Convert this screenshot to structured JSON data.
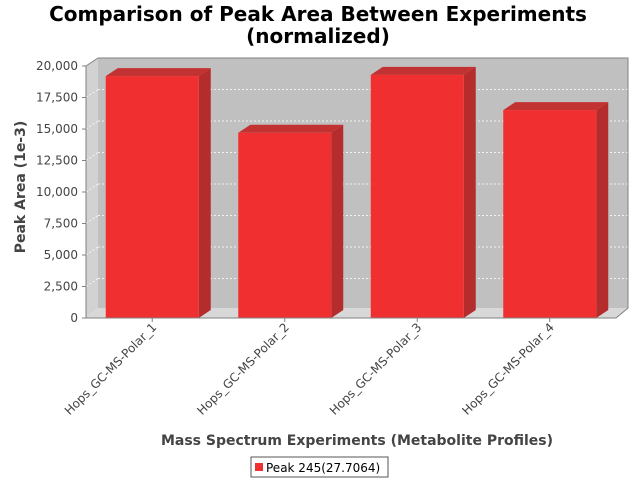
{
  "chart_data": {
    "type": "bar",
    "title": [
      "Comparison of Peak Area Between Experiments",
      "(normalized)"
    ],
    "xlabel": "Mass Spectrum Experiments (Metabolite Profiles)",
    "ylabel": "Peak Area (1e-3)",
    "categories": [
      "Hops_GC-MS-Polar_1",
      "Hops_GC-MS-Polar_2",
      "Hops_GC-MS-Polar_3",
      "Hops_GC-MS-Polar_4"
    ],
    "series": [
      {
        "name": "Peak 245(27.7064)",
        "values": [
          19200,
          14700,
          19300,
          16500
        ],
        "color": "#f03030"
      }
    ],
    "ylim": [
      0,
      20000
    ],
    "yticks": [
      "0",
      "2,500",
      "5,000",
      "7,500",
      "10,000",
      "12,500",
      "15,000",
      "17,500",
      "20,000"
    ],
    "grid": true,
    "legend_position": "bottom",
    "style": "3d-bar",
    "plot_background": "#c0c0c0"
  }
}
